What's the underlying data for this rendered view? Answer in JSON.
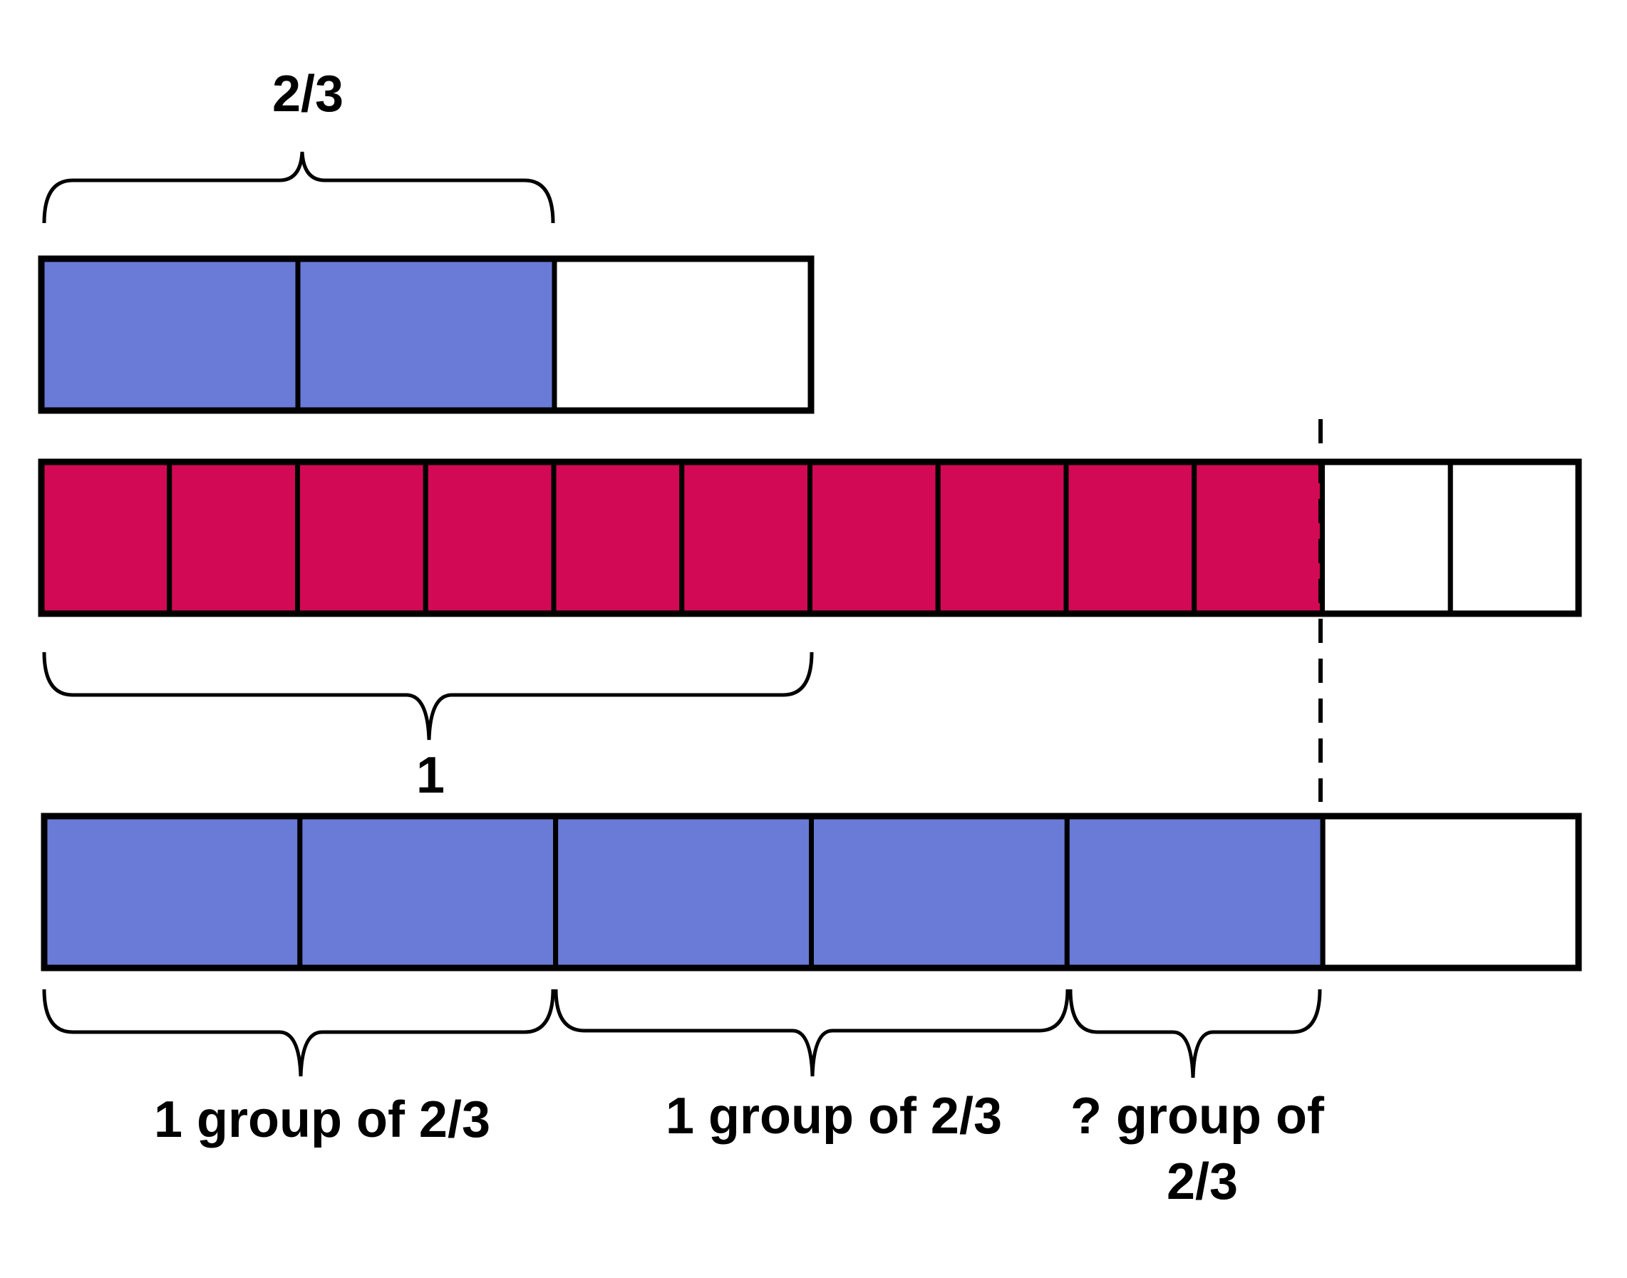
{
  "colors": {
    "blue": "#6a7ad7",
    "crimson": "#d20954",
    "empty": "#ffffff",
    "stroke": "#000000"
  },
  "top_bar": {
    "label": "2/3",
    "parts": 3,
    "shaded": 2
  },
  "middle_bar": {
    "label": "1",
    "parts": 12,
    "shaded": 10
  },
  "bottom_bar": {
    "parts": 6,
    "shaded": 5,
    "groups": [
      {
        "label": "1 group of 2/3"
      },
      {
        "label": "1 group of 2/3"
      },
      {
        "label_line1": "? group of",
        "label_line2": "2/3"
      }
    ]
  }
}
